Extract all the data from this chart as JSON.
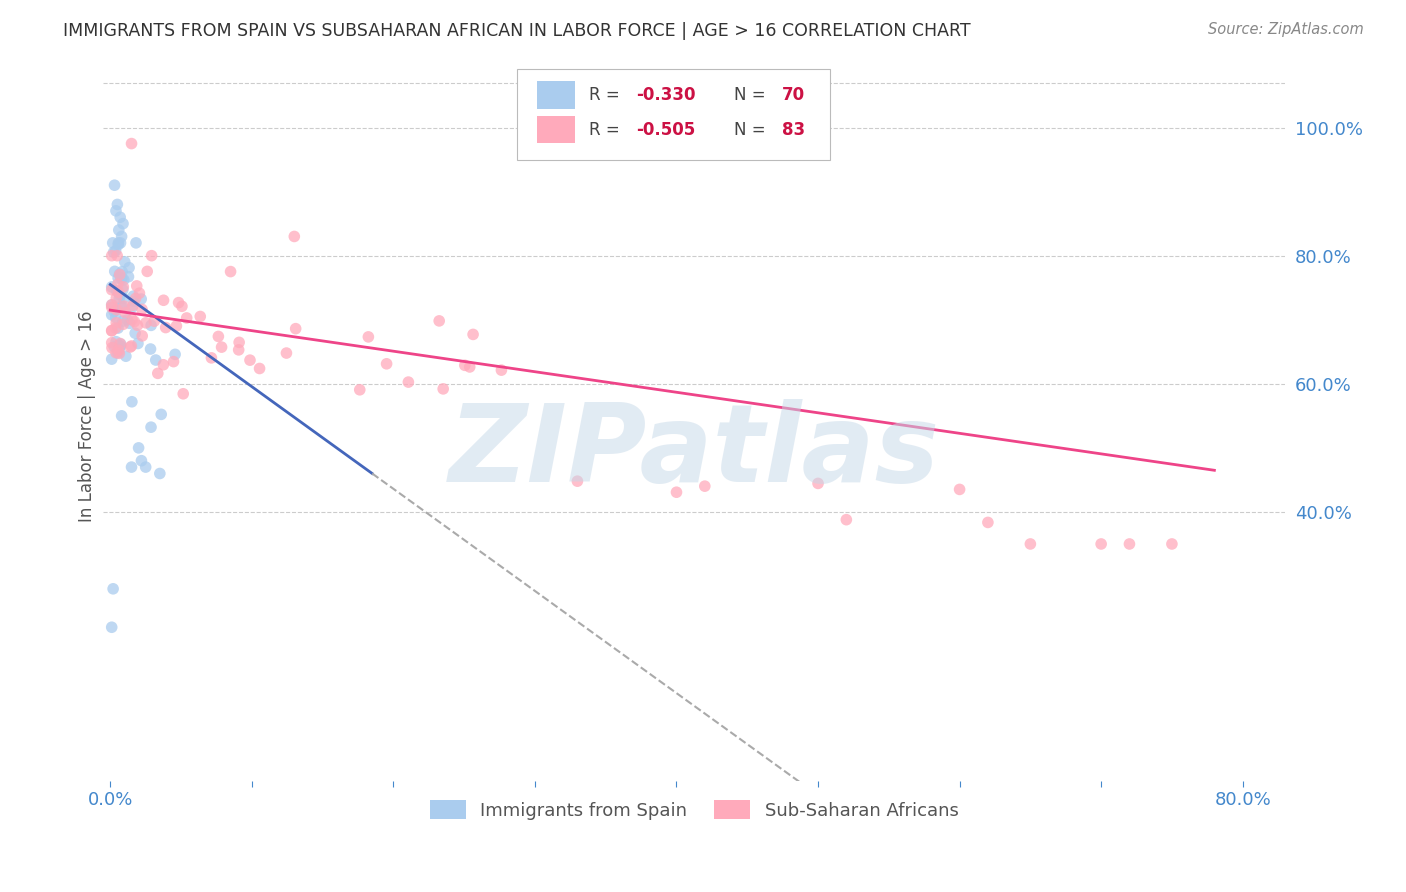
{
  "title": "IMMIGRANTS FROM SPAIN VS SUBSAHARAN AFRICAN IN LABOR FORCE | AGE > 16 CORRELATION CHART",
  "source": "Source: ZipAtlas.com",
  "ylabel": "In Labor Force | Age > 16",
  "watermark": "ZIPatlas",
  "bg_color": "#ffffff",
  "grid_color": "#cccccc",
  "title_color": "#333333",
  "right_axis_color": "#4488cc",
  "bottom_axis_color": "#4488cc",
  "spain_scatter_color": "#aaccee",
  "subsaharan_scatter_color": "#ffaabb",
  "spain_line_color": "#4466bb",
  "subsaharan_line_color": "#ee4488",
  "scatter_alpha": 0.75,
  "scatter_size": 70,
  "legend_labels": [
    "Immigrants from Spain",
    "Sub-Saharan Africans"
  ],
  "xlim": [
    -0.005,
    0.83
  ],
  "ylim": [
    -0.02,
    1.12
  ],
  "spain_line_x0": 0.0,
  "spain_line_x1": 0.185,
  "spain_line_y0": 0.755,
  "spain_line_y1": 0.46,
  "dash_line_x0": 0.185,
  "dash_line_x1": 0.525,
  "sub_line_x0": 0.0,
  "sub_line_x1": 0.78,
  "sub_line_y0": 0.715,
  "sub_line_y1": 0.465,
  "yticks": [
    0.4,
    0.6,
    0.8,
    1.0
  ],
  "ytick_labels": [
    "40.0%",
    "60.0%",
    "80.0%",
    "100.0%"
  ],
  "xticks": [
    0.0,
    0.1,
    0.2,
    0.3,
    0.4,
    0.5,
    0.6,
    0.7,
    0.8
  ],
  "xtick_labels": [
    "0.0%",
    "",
    "",
    "",
    "",
    "",
    "",
    "",
    "80.0%"
  ]
}
